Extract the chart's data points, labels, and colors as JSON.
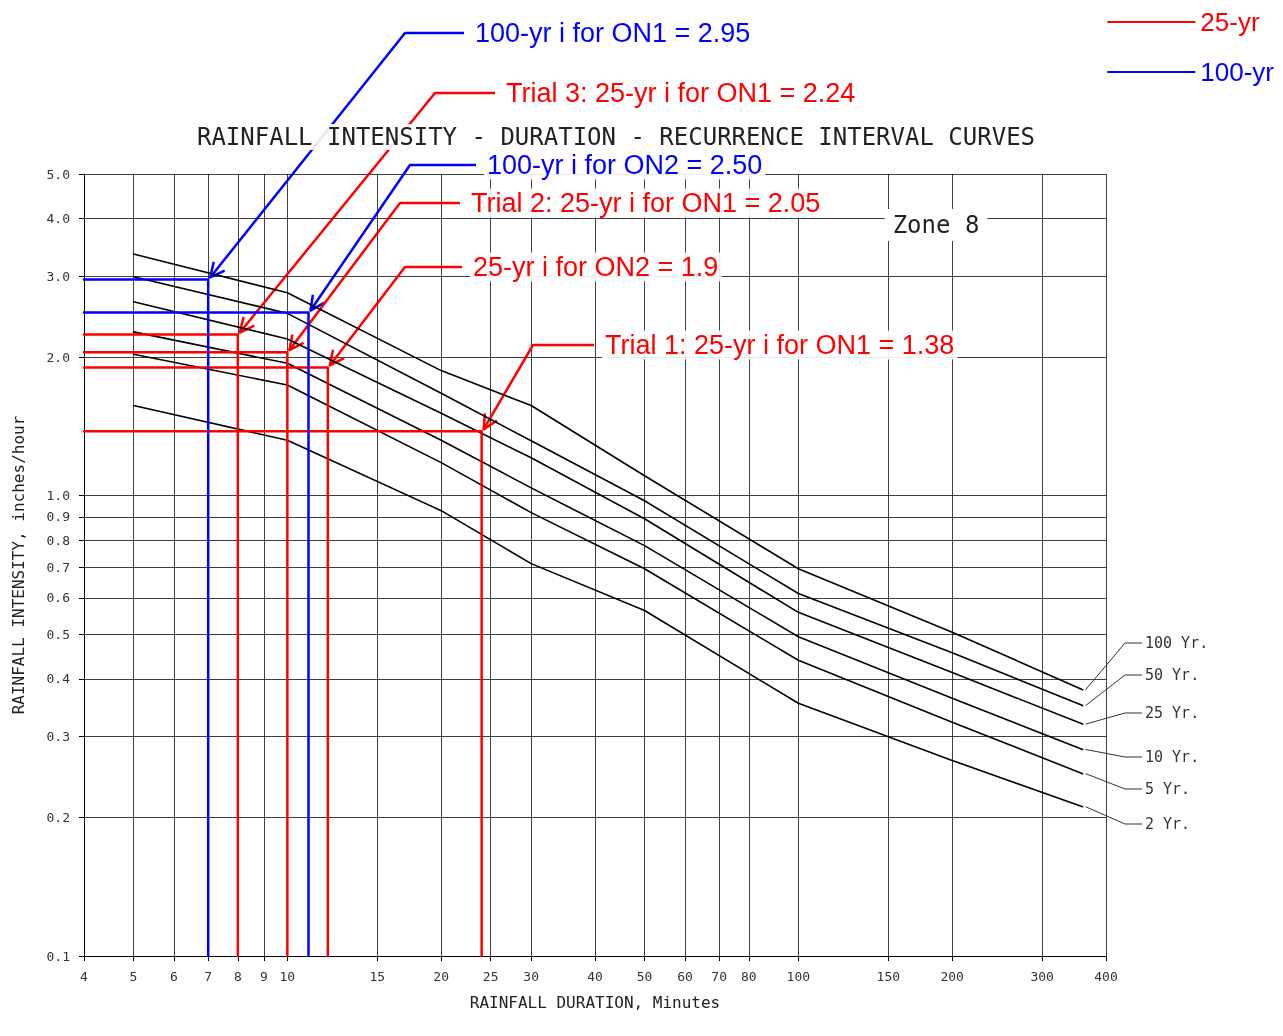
{
  "chart_data": {
    "type": "line",
    "title": "RAINFALL INTENSITY - DURATION - RECURRENCE INTERVAL CURVES",
    "xlabel": "RAINFALL DURATION, Minutes",
    "ylabel": "RAINFALL INTENSITY, inches/hour",
    "x": [
      5,
      10,
      20,
      30,
      50,
      100,
      200,
      360
    ],
    "series": [
      {
        "name": "100 Yr.",
        "color": "#000000",
        "values": [
          3.35,
          2.76,
          1.87,
          1.57,
          1.105,
          0.694,
          0.505,
          0.379
        ]
      },
      {
        "name": "50 Yr.",
        "color": "#000000",
        "values": [
          2.99,
          2.49,
          1.67,
          1.316,
          0.975,
          0.613,
          0.456,
          0.35
        ]
      },
      {
        "name": "25 Yr.",
        "color": "#000000",
        "values": [
          2.64,
          2.19,
          1.51,
          1.209,
          0.891,
          0.558,
          0.413,
          0.319
        ]
      },
      {
        "name": "10 Yr.",
        "color": "#000000",
        "values": [
          2.27,
          1.94,
          1.32,
          1.04,
          0.779,
          0.494,
          0.363,
          0.281
        ]
      },
      {
        "name": "5 Yr.",
        "color": "#000000",
        "values": [
          2.03,
          1.74,
          1.18,
          0.919,
          0.694,
          0.439,
          0.322,
          0.249
        ]
      },
      {
        "name": "2 Yr.",
        "color": "#000000",
        "values": [
          1.57,
          1.32,
          0.928,
          0.712,
          0.563,
          0.354,
          0.266,
          0.211
        ]
      },
      {
        "name": "25-yr",
        "color": "#ff0000",
        "x": [
          4,
          8,
          8,
          null,
          4,
          10,
          10,
          null,
          4,
          12,
          12,
          null,
          4,
          24,
          24
        ],
        "values": [
          2.24,
          2.24,
          0.1,
          null,
          2.05,
          2.05,
          0.1,
          null,
          1.9,
          1.9,
          0.1,
          null,
          1.38,
          1.38,
          0.1
        ]
      },
      {
        "name": "100-yr",
        "color": "#0000ff",
        "x": [
          4,
          7,
          7,
          null,
          4,
          11,
          11
        ],
        "values": [
          2.95,
          2.95,
          0.1,
          null,
          2.5,
          2.5,
          0.1
        ]
      }
    ],
    "xlim": [
      4,
      400
    ],
    "ylim": [
      0.1,
      5
    ],
    "xticks": [
      4,
      5,
      6,
      7,
      8,
      9,
      10,
      15,
      20,
      25,
      30,
      40,
      50,
      60,
      70,
      80,
      100,
      150,
      200,
      300,
      400
    ],
    "yticks": [
      0.1,
      0.2,
      0.3,
      0.4,
      0.5,
      0.6,
      0.7,
      0.8,
      0.9,
      {
        "value": 1,
        "label": "1.0"
      },
      {
        "value": 2,
        "label": "2.0"
      },
      {
        "value": 3,
        "label": "3.0"
      },
      {
        "value": 4,
        "label": "4.0"
      },
      {
        "value": 5,
        "label": "5.0"
      }
    ],
    "log": "xy",
    "grid": true,
    "legend": "top right",
    "annotations": [
      {
        "text": "100-yr i for ON1 = 2.95",
        "x": 7,
        "y": 2.95
      },
      {
        "text": "Trial 3: 25-yr i for ON1 = 2.24",
        "x": 8,
        "y": 2.24
      },
      {
        "text": "100-yr i for ON2 = 2.50",
        "x": 11,
        "y": 2.5
      },
      {
        "text": "Trial 2: 25-yr i for ON1 = 2.05",
        "x": 10,
        "y": 2.05
      },
      {
        "text": "25-yr i for ON2 = 1.9",
        "x": 12,
        "y": 1.9
      },
      {
        "text": "Trial 1: 25-yr i for ON1 = 1.38",
        "x": 24,
        "y": 1.38
      },
      "Zone 8"
    ]
  }
}
